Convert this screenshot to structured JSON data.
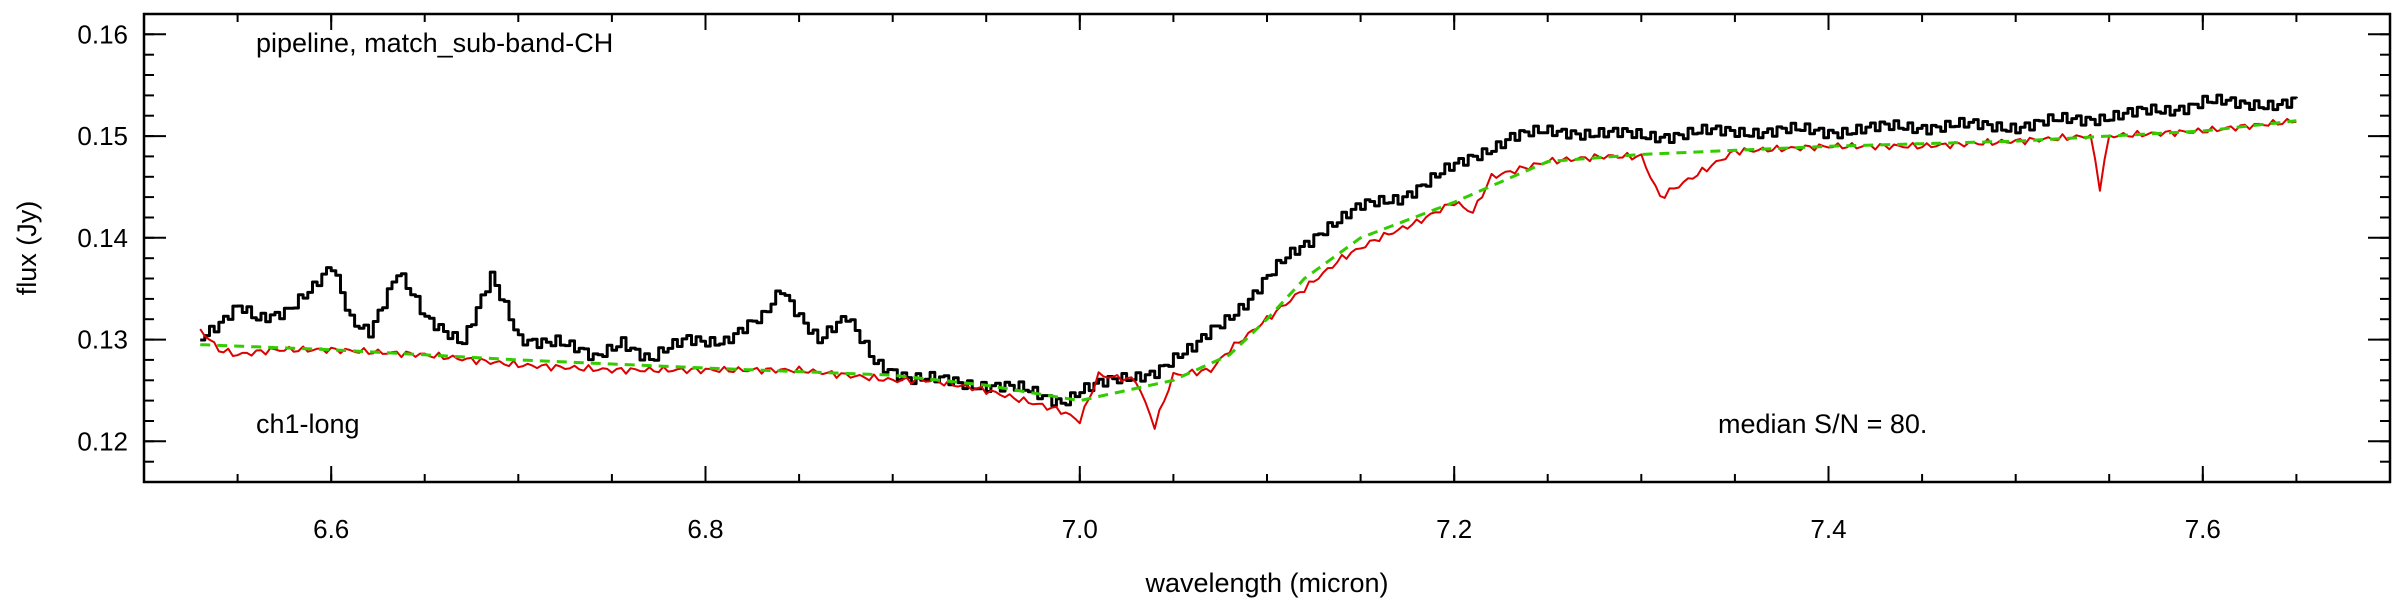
{
  "chart_data": {
    "type": "line",
    "xlabel": "wavelength (micron)",
    "ylabel": "flux (Jy)",
    "xlim": [
      6.5,
      7.7
    ],
    "ylim": [
      0.116,
      0.162
    ],
    "x_ticks_major": [
      6.6,
      6.8,
      7.0,
      7.2,
      7.4,
      7.6
    ],
    "x_tick_labels": [
      "6.6",
      "6.8",
      "7.0",
      "7.2",
      "7.4",
      "7.6"
    ],
    "y_ticks_major": [
      0.12,
      0.13,
      0.14,
      0.15,
      0.16
    ],
    "y_tick_labels": [
      "0.12",
      "0.13",
      "0.14",
      "0.15",
      "0.16"
    ],
    "grid": false,
    "legend": "none",
    "annotations": {
      "top_left": "pipeline, match_sub-band-CH",
      "bottom_left": "ch1-long",
      "bottom_right": "median S/N =  80."
    },
    "series": [
      {
        "color": "#000000",
        "style": "steps",
        "x": [
          6.53,
          6.54,
          6.55,
          6.56,
          6.575,
          6.59,
          6.6,
          6.61,
          6.62,
          6.635,
          6.65,
          6.66,
          6.67,
          6.685,
          6.7,
          6.72,
          6.74,
          6.755,
          6.77,
          6.79,
          6.81,
          6.83,
          6.84,
          6.86,
          6.875,
          6.89,
          6.91,
          6.93,
          6.95,
          6.97,
          6.99,
          7.0,
          7.02,
          7.04,
          7.06,
          7.07,
          7.09,
          7.11,
          7.13,
          7.15,
          7.17,
          7.19,
          7.21,
          7.23,
          7.26,
          7.3,
          7.35,
          7.4,
          7.45,
          7.5,
          7.55,
          7.58,
          7.6,
          7.62,
          7.65
        ],
        "y": [
          0.1305,
          0.1315,
          0.133,
          0.132,
          0.133,
          0.135,
          0.137,
          0.132,
          0.131,
          0.1365,
          0.132,
          0.131,
          0.13,
          0.136,
          0.13,
          0.13,
          0.128,
          0.13,
          0.128,
          0.13,
          0.13,
          0.132,
          0.135,
          0.13,
          0.132,
          0.128,
          0.126,
          0.126,
          0.1255,
          0.125,
          0.124,
          0.125,
          0.126,
          0.127,
          0.129,
          0.131,
          0.134,
          0.138,
          0.141,
          0.143,
          0.144,
          0.146,
          0.148,
          0.15,
          0.1505,
          0.15,
          0.1505,
          0.1505,
          0.151,
          0.151,
          0.152,
          0.1525,
          0.1535,
          0.153,
          0.1535
        ]
      },
      {
        "color": "#dd0000",
        "style": "line",
        "x": [
          6.53,
          6.54,
          6.55,
          6.57,
          6.6,
          6.65,
          6.7,
          6.75,
          6.8,
          6.85,
          6.9,
          6.92,
          6.95,
          6.97,
          6.99,
          7.0,
          7.01,
          7.03,
          7.04,
          7.05,
          7.07,
          7.08,
          7.1,
          7.12,
          7.14,
          7.16,
          7.18,
          7.2,
          7.21,
          7.22,
          7.25,
          7.28,
          7.3,
          7.31,
          7.35,
          7.4,
          7.45,
          7.5,
          7.54,
          7.545,
          7.55,
          7.6,
          7.65
        ],
        "y": [
          0.131,
          0.129,
          0.1285,
          0.129,
          0.129,
          0.1285,
          0.1275,
          0.127,
          0.127,
          0.127,
          0.126,
          0.126,
          0.125,
          0.124,
          0.123,
          0.122,
          0.1265,
          0.126,
          0.1215,
          0.1265,
          0.127,
          0.129,
          0.132,
          0.135,
          0.138,
          0.14,
          0.1415,
          0.1435,
          0.1425,
          0.146,
          0.1475,
          0.148,
          0.148,
          0.144,
          0.1485,
          0.149,
          0.149,
          0.1495,
          0.15,
          0.145,
          0.15,
          0.1505,
          0.1515
        ]
      },
      {
        "color": "#33cc00",
        "style": "dashed",
        "x": [
          6.53,
          6.6,
          6.7,
          6.8,
          6.9,
          6.95,
          7.0,
          7.05,
          7.08,
          7.1,
          7.12,
          7.15,
          7.2,
          7.25,
          7.3,
          7.4,
          7.5,
          7.6,
          7.65
        ],
        "y": [
          0.1295,
          0.129,
          0.128,
          0.1272,
          0.1265,
          0.1255,
          0.124,
          0.126,
          0.1285,
          0.132,
          0.136,
          0.14,
          0.1435,
          0.1475,
          0.1482,
          0.149,
          0.1495,
          0.1505,
          0.1515
        ]
      }
    ]
  }
}
